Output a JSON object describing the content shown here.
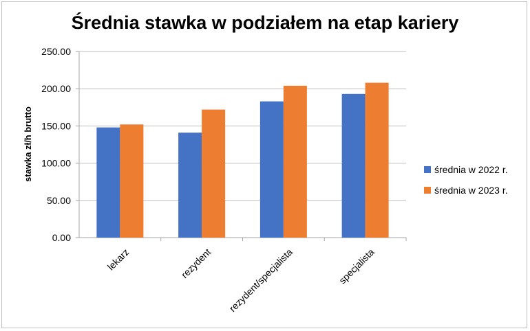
{
  "chart_data": {
    "type": "bar",
    "title": "Średnia stawka w podziałem na etap kariery",
    "xlabel": "",
    "ylabel": "stawka zł/h brutto",
    "categories": [
      "lekarz",
      "rezydent",
      "rezydent/specjalista",
      "specjalista"
    ],
    "series": [
      {
        "name": "średnia w 2022 r.",
        "color": "#4472c4",
        "values": [
          148,
          141,
          183,
          193
        ]
      },
      {
        "name": "średnia w 2023 r.",
        "color": "#ed7d31",
        "values": [
          152,
          172,
          204,
          208
        ]
      }
    ],
    "ylim": [
      0,
      250
    ],
    "yticks": [
      "0.00",
      "50.00",
      "100.00",
      "150.00",
      "200.00",
      "250.00"
    ],
    "grid": true,
    "legend_position": "right"
  }
}
